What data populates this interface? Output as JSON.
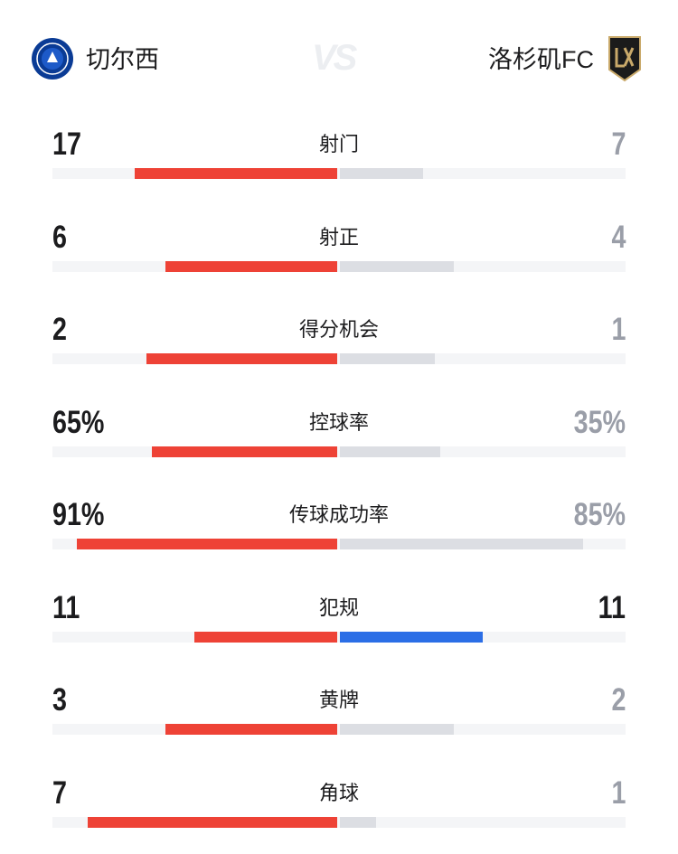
{
  "header": {
    "home_team": "切尔西",
    "vs": "VS",
    "away_team": "洛杉矶FC"
  },
  "colors": {
    "home_bar": "#ee4236",
    "away_bar": "#dcdee3",
    "home_text": "#1c1c1e",
    "away_text_lower": "#9a9ea8",
    "track": "#f4f5f7"
  },
  "stats": {
    "rows": [
      {
        "label": "射门",
        "home": 17,
        "away": 7
      },
      {
        "label": "射正",
        "home": 6,
        "away": 4
      },
      {
        "label": "得分机会",
        "home": 2,
        "away": 1
      },
      {
        "label": "控球率",
        "home": 65,
        "away": 35,
        "home_label": "65%",
        "away_label": "35%"
      },
      {
        "label": "传球成功率",
        "home": 91,
        "away": 85,
        "home_label": "91%",
        "away_label": "85%"
      },
      {
        "label": "犯规",
        "home": 11,
        "away": 11,
        "away_color": "#2b6ee6"
      },
      {
        "label": "黄牌",
        "home": 3,
        "away": 2
      },
      {
        "label": "角球",
        "home": 7,
        "away": 1
      }
    ]
  }
}
